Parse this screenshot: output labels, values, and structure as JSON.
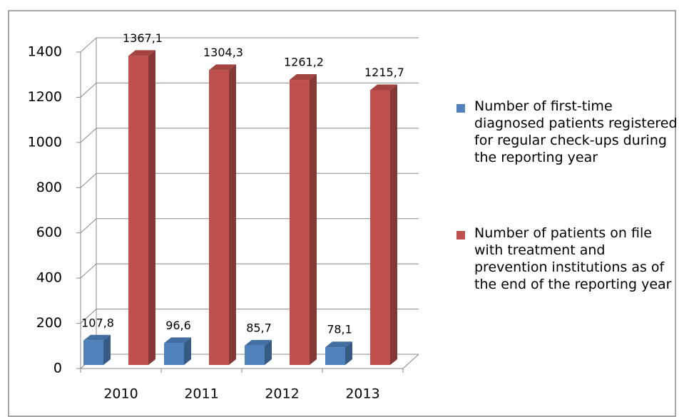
{
  "chart_data": {
    "type": "bar3d",
    "categories": [
      "2010",
      "2011",
      "2012",
      "2013"
    ],
    "series": [
      {
        "name": "Number of first-time diagnosed patients registered for regular check-ups during the reporting year",
        "color": "#4f81bd",
        "values": [
          107.8,
          96.6,
          85.7,
          78.1
        ],
        "value_labels": [
          "107,8",
          "96,6",
          "85,7",
          "78,1"
        ]
      },
      {
        "name": "Number of patients on file with treatment and prevention institutions as of the end of the reporting year",
        "color": "#c0504d",
        "values": [
          1367.1,
          1304.3,
          1261.2,
          1215.7
        ],
        "value_labels": [
          "1367,1",
          "1304,3",
          "1261,2",
          "1215,7"
        ]
      }
    ],
    "ylim": [
      0,
      1400
    ],
    "yticks": [
      0,
      200,
      400,
      600,
      800,
      1000,
      1200,
      1400
    ],
    "grid": true,
    "legend": "right"
  }
}
